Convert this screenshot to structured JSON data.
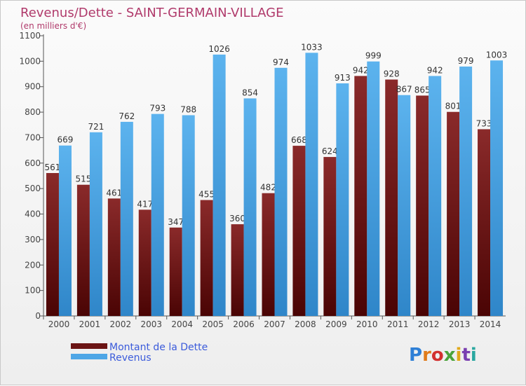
{
  "chart_data": {
    "type": "bar",
    "title": "Revenus/Dette - SAINT-GERMAIN-VILLAGE",
    "subtitle": "(en milliers d'€)",
    "categories": [
      "2000",
      "2001",
      "2002",
      "2003",
      "2004",
      "2005",
      "2006",
      "2007",
      "2008",
      "2009",
      "2010",
      "2011",
      "2012",
      "2013",
      "2014"
    ],
    "series": [
      {
        "name": "Montant de la Dette",
        "color": "#6b1414",
        "values": [
          561,
          515,
          461,
          417,
          347,
          455,
          360,
          482,
          668,
          624,
          942,
          928,
          865,
          801,
          733
        ]
      },
      {
        "name": "Revenus",
        "color": "#4ea6e6",
        "values": [
          669,
          721,
          762,
          793,
          788,
          1026,
          854,
          974,
          1033,
          913,
          999,
          867,
          942,
          979,
          1003
        ]
      }
    ],
    "y_ticks": [
      0,
      100,
      200,
      300,
      400,
      500,
      600,
      700,
      800,
      900,
      1000,
      1100
    ],
    "ylim": [
      0,
      1100
    ],
    "grid": false,
    "legend_position": "bottom-left"
  },
  "logo": {
    "text": "Proxiti"
  }
}
